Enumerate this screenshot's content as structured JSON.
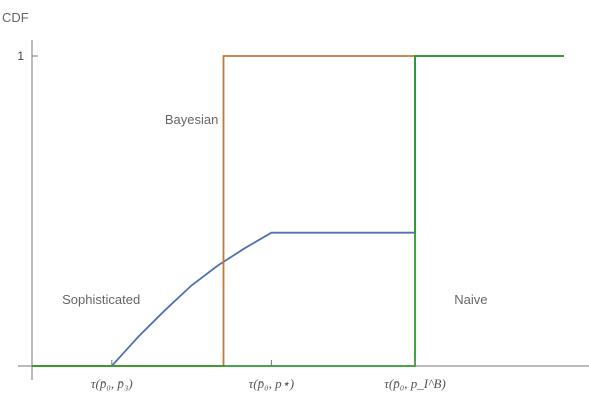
{
  "chart_data": {
    "type": "line",
    "title": "",
    "ylabel": "CDF",
    "xlabel": "",
    "xlim": [
      0,
      1
    ],
    "ylim": [
      0,
      1
    ],
    "grid": false,
    "x_ticks": [
      {
        "x": 0.15,
        "label": "τ(p̄₀, p̄₃)"
      },
      {
        "x": 0.45,
        "label": "τ(p̄₀, p⋆)"
      },
      {
        "x": 0.72,
        "label": "τ(p̄₀, p_I^B)"
      }
    ],
    "y_ticks": [
      {
        "y": 1,
        "label": "1"
      }
    ],
    "series": [
      {
        "name": "Sophisticated",
        "color": "#4f72b0",
        "points": [
          [
            0,
            0
          ],
          [
            0.15,
            0
          ],
          [
            0.2,
            0.095
          ],
          [
            0.25,
            0.18
          ],
          [
            0.3,
            0.26
          ],
          [
            0.35,
            0.325
          ],
          [
            0.4,
            0.38
          ],
          [
            0.45,
            0.43
          ],
          [
            0.72,
            0.43
          ],
          [
            0.72,
            1
          ],
          [
            1,
            1
          ]
        ]
      },
      {
        "name": "Bayesian",
        "color": "#c0793a",
        "points": [
          [
            0,
            0
          ],
          [
            0.36,
            0
          ],
          [
            0.36,
            1
          ],
          [
            0.72,
            1
          ]
        ]
      },
      {
        "name": "Naive",
        "color": "#2e9a2e",
        "points": [
          [
            0,
            0
          ],
          [
            0.72,
            0
          ],
          [
            0.72,
            1
          ],
          [
            1,
            1
          ]
        ]
      }
    ],
    "annotations": [
      {
        "text": "Bayesian",
        "x": 0.3,
        "y": 0.78
      },
      {
        "text": "Sophisticated",
        "x": 0.13,
        "y": 0.2
      },
      {
        "text": "Naive",
        "x": 0.825,
        "y": 0.2
      }
    ]
  }
}
